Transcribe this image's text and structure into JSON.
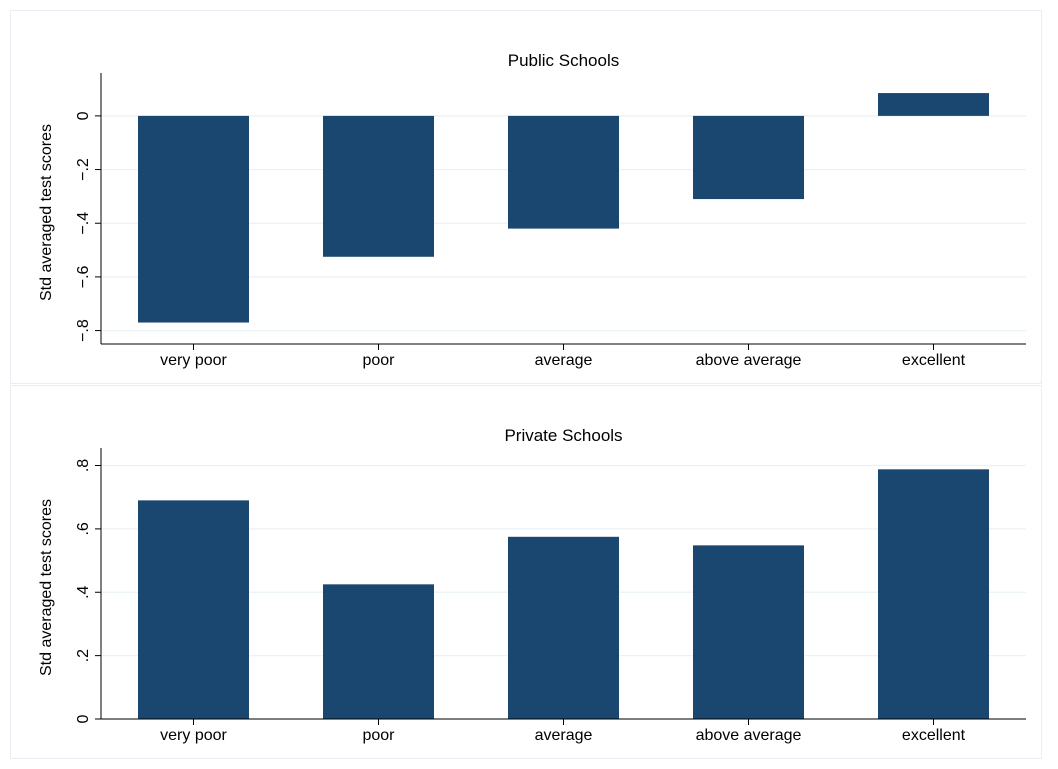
{
  "chart_data": [
    {
      "type": "bar",
      "title": "Public Schools",
      "ylabel": "Std averaged test scores",
      "xlabel": "",
      "categories": [
        "very poor",
        "poor",
        "average",
        "above average",
        "excellent"
      ],
      "values": [
        -0.77,
        -0.525,
        -0.42,
        -0.31,
        0.085
      ],
      "ylim": [
        -0.85,
        0.13
      ],
      "yticks": [
        -0.8,
        -0.6,
        -0.4,
        -0.2,
        0
      ],
      "ytick_labels": [
        "−.8",
        "−.6",
        "−.4",
        "−.2",
        "0"
      ],
      "grid": true,
      "bar_color": "#1a476f"
    },
    {
      "type": "bar",
      "title": "Private Schools",
      "ylabel": "Std averaged test scores",
      "xlabel": "",
      "categories": [
        "very poor",
        "poor",
        "average",
        "above average",
        "excellent"
      ],
      "values": [
        0.69,
        0.425,
        0.575,
        0.548,
        0.788
      ],
      "ylim": [
        0,
        0.83
      ],
      "yticks": [
        0,
        0.2,
        0.4,
        0.6,
        0.8
      ],
      "ytick_labels": [
        "0",
        ".2",
        ".4",
        ".6",
        ".8"
      ],
      "grid": true,
      "bar_color": "#1a476f"
    }
  ]
}
